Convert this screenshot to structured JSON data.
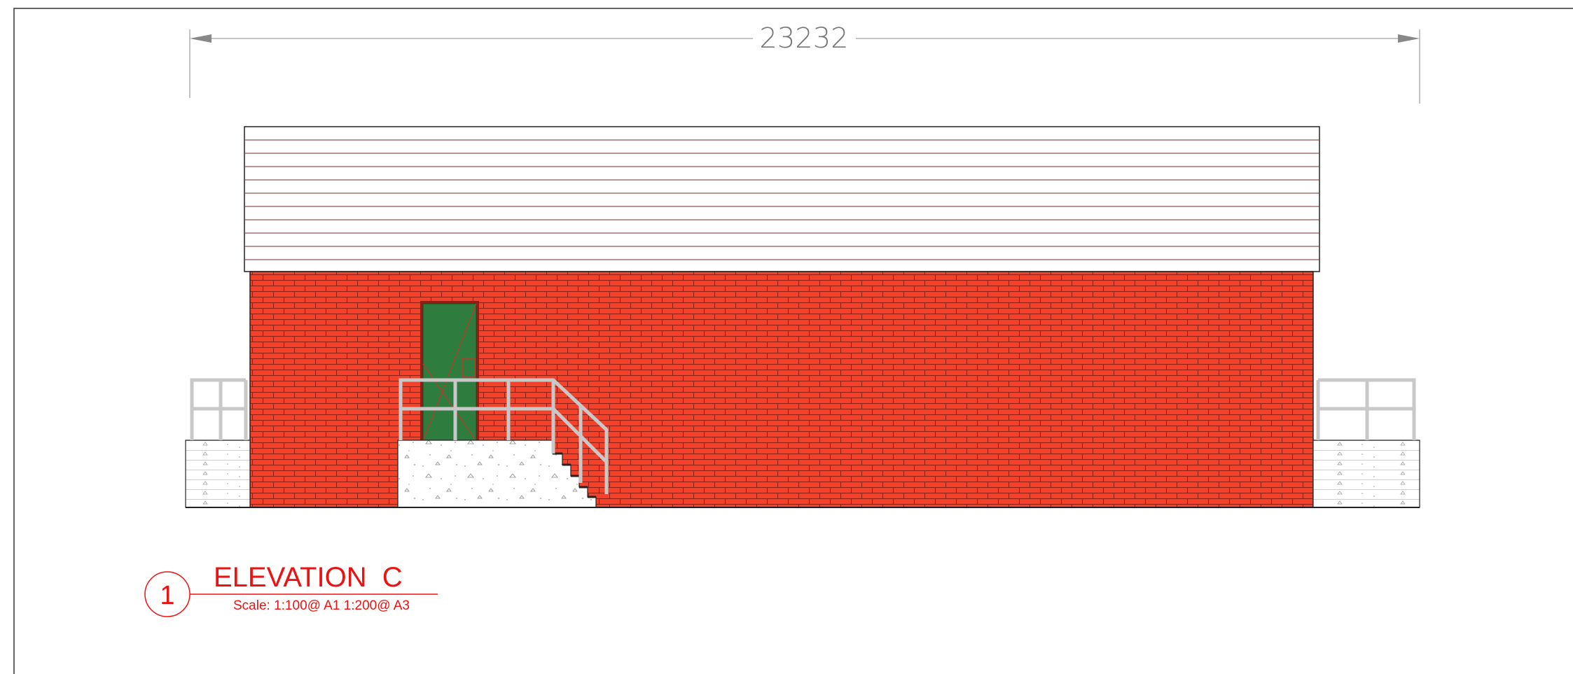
{
  "dimension": {
    "label": "23232"
  },
  "title_block": {
    "number": "1",
    "title": "ELEVATION  C",
    "scale": "Scale: 1:100@ A1 1:200@ A3"
  },
  "colors": {
    "brick": "#f4422a",
    "mortar": "#8e1f12",
    "door": "#2e7d3f",
    "door_detail": "#c0392b",
    "roof_line": "#7a2a2a",
    "railing": "#c8c8c8",
    "concrete_speck": "#999999",
    "annotation_red": "#ee1111",
    "dimension_grey": "#888888"
  }
}
